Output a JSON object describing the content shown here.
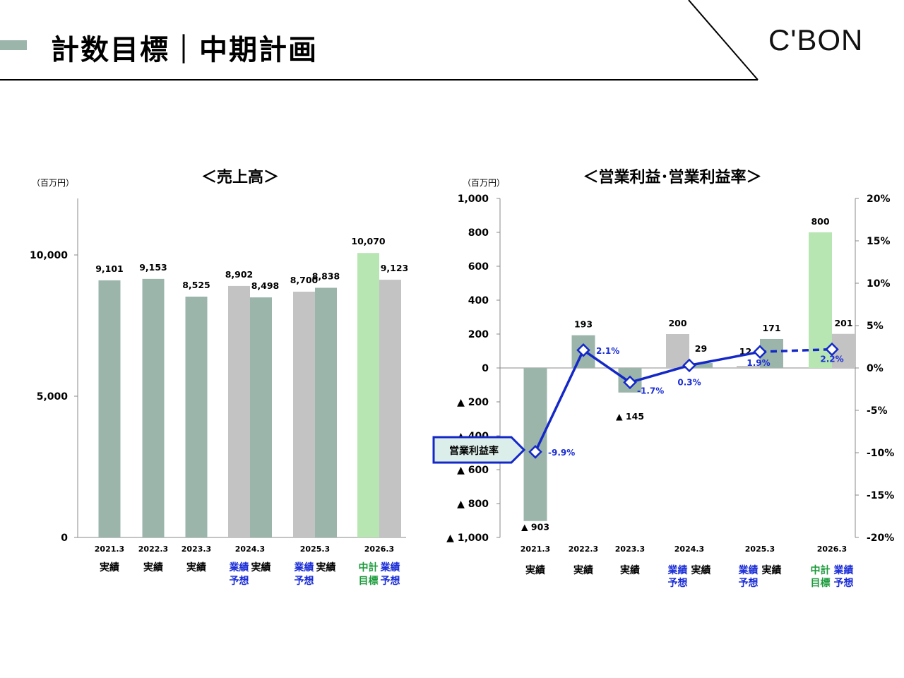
{
  "header": {
    "title": "計数目標｜中期計画",
    "logo": "C'BON"
  },
  "colors": {
    "actual": "#9bb5ab",
    "forecast": "#c3c3c3",
    "target": "#b8e6b3",
    "rate_line": "#1428c8",
    "blue_label": "#1c2fd6",
    "green_label": "#1a9a3a"
  },
  "chart_data": [
    {
      "type": "bar",
      "title": "＜売上高＞",
      "unit": "（百万円）",
      "ylim": [
        0,
        12000
      ],
      "y_ticks": [
        {
          "value": 0,
          "label": "0"
        },
        {
          "value": 5000,
          "label": "5,000"
        },
        {
          "value": 10000,
          "label": "10,000"
        }
      ],
      "groups": [
        {
          "year": "2021.3",
          "bars": [
            {
              "value": 9101,
              "label": "9,101",
              "kind": "actual",
              "desc": "実績"
            }
          ]
        },
        {
          "year": "2022.3",
          "bars": [
            {
              "value": 9153,
              "label": "9,153",
              "kind": "actual",
              "desc": "実績"
            }
          ]
        },
        {
          "year": "2023.3",
          "bars": [
            {
              "value": 8525,
              "label": "8,525",
              "kind": "actual",
              "desc": "実績"
            }
          ]
        },
        {
          "year": "2024.3",
          "bars": [
            {
              "value": 8902,
              "label": "8,902",
              "kind": "forecast",
              "desc": "業績予想"
            },
            {
              "value": 8498,
              "label": "8,498",
              "kind": "actual",
              "desc": "実績"
            }
          ]
        },
        {
          "year": "2025.3",
          "bars": [
            {
              "value": 8700,
              "label": "8,700",
              "kind": "forecast",
              "desc": "業績予想"
            },
            {
              "value": 8838,
              "label": "8,838",
              "kind": "actual",
              "desc": "実績"
            }
          ]
        },
        {
          "year": "2026.3",
          "bars": [
            {
              "value": 10070,
              "label": "10,070",
              "kind": "target",
              "desc": "中計目標"
            },
            {
              "value": 9123,
              "label": "9,123",
              "kind": "forecast",
              "desc": "業績予想"
            }
          ]
        }
      ]
    },
    {
      "type": "bar",
      "title": "＜営業利益･営業利益率＞",
      "unit": "（百万円）",
      "ylim": [
        -1000,
        1000
      ],
      "y2lim": [
        -20,
        20
      ],
      "y_ticks": [
        {
          "value": 1000,
          "label": "1,000"
        },
        {
          "value": 800,
          "label": "800"
        },
        {
          "value": 600,
          "label": "600"
        },
        {
          "value": 400,
          "label": "400"
        },
        {
          "value": 200,
          "label": "200"
        },
        {
          "value": 0,
          "label": "0"
        },
        {
          "value": -200,
          "label": "▲ 200"
        },
        {
          "value": -400,
          "label": "▲ 400"
        },
        {
          "value": -600,
          "label": "▲ 600"
        },
        {
          "value": -800,
          "label": "▲ 800"
        },
        {
          "value": -1000,
          "label": "▲ 1,000"
        }
      ],
      "y2_ticks": [
        {
          "value": 20,
          "label": "20%"
        },
        {
          "value": 15,
          "label": "15%"
        },
        {
          "value": 10,
          "label": "10%"
        },
        {
          "value": 5,
          "label": "5%"
        },
        {
          "value": 0,
          "label": "0%"
        },
        {
          "value": -5,
          "label": "-5%"
        },
        {
          "value": -10,
          "label": "-10%"
        },
        {
          "value": -15,
          "label": "-15%"
        },
        {
          "value": -20,
          "label": "-20%"
        }
      ],
      "groups": [
        {
          "year": "2021.3",
          "bars": [
            {
              "value": -903,
              "label": "▲ 903",
              "kind": "actual",
              "desc": "実績"
            }
          ]
        },
        {
          "year": "2022.3",
          "bars": [
            {
              "value": 193,
              "label": "193",
              "kind": "actual",
              "desc": "実績"
            }
          ]
        },
        {
          "year": "2023.3",
          "bars": [
            {
              "value": -145,
              "label": "▲ 145",
              "kind": "actual",
              "desc": "実績"
            }
          ]
        },
        {
          "year": "2024.3",
          "bars": [
            {
              "value": 200,
              "label": "200",
              "kind": "forecast",
              "desc": "業績予想"
            },
            {
              "value": 29,
              "label": "29",
              "kind": "actual",
              "desc": "実績"
            }
          ]
        },
        {
          "year": "2025.3",
          "bars": [
            {
              "value": 12,
              "label": "12",
              "kind": "forecast",
              "desc": "業績予想"
            },
            {
              "value": 171,
              "label": "171",
              "kind": "actual",
              "desc": "実績"
            }
          ]
        },
        {
          "year": "2026.3",
          "bars": [
            {
              "value": 800,
              "label": "800",
              "kind": "target",
              "desc": "中計目標"
            },
            {
              "value": 201,
              "label": "201",
              "kind": "forecast",
              "desc": "業績予想"
            }
          ]
        }
      ],
      "rate_series": {
        "name": "営業利益率",
        "values": [
          -9.9,
          2.1,
          -1.7,
          0.3,
          1.9,
          2.2
        ],
        "labels": [
          "-9.9%",
          "2.1%",
          "-1.7%",
          "0.3%",
          "1.9%",
          "2.2%"
        ],
        "dashed_last_segment": true
      }
    }
  ]
}
